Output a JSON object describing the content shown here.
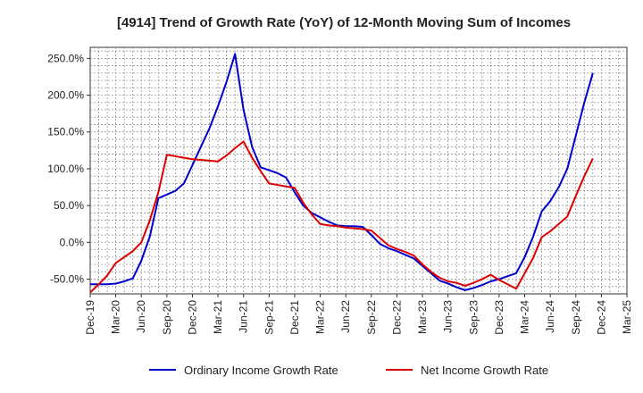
{
  "chart_data": {
    "type": "line",
    "title": "[4914]  Trend of Growth Rate (YoY) of 12-Month Moving Sum of Incomes",
    "xlabel": "",
    "ylabel": "",
    "ylim": [
      -70,
      265
    ],
    "grid": true,
    "legend": "bottom",
    "y_ticks": [
      -50,
      0,
      50,
      100,
      150,
      200,
      250
    ],
    "y_tick_labels": [
      "-50.0%",
      "0.0%",
      "50.0%",
      "100.0%",
      "150.0%",
      "200.0%",
      "250.0%"
    ],
    "x_tick_labels": [
      "Dec-19",
      "Mar-20",
      "Jun-20",
      "Sep-20",
      "Dec-20",
      "Mar-21",
      "Jun-21",
      "Sep-21",
      "Dec-21",
      "Mar-22",
      "Jun-22",
      "Sep-22",
      "Dec-22",
      "Mar-23",
      "Jun-23",
      "Sep-23",
      "Dec-23",
      "Mar-24",
      "Jun-24",
      "Sep-24",
      "Dec-24",
      "Mar-25"
    ],
    "series": [
      {
        "name": "Ordinary Income Growth Rate",
        "color": "#0000cc",
        "values": [
          -57,
          -57,
          -57,
          -56,
          -53,
          -49,
          -25,
          8,
          60,
          65,
          70,
          80,
          105,
          130,
          155,
          185,
          218,
          256,
          180,
          130,
          102,
          98,
          94,
          88,
          68,
          50,
          40,
          34,
          28,
          23,
          22,
          22,
          21,
          10,
          -2,
          -8,
          -12,
          -17,
          -22,
          -32,
          -42,
          -52,
          -56,
          -61,
          -65,
          -62,
          -58,
          -53,
          -50,
          -46,
          -42,
          -20,
          8,
          42,
          56,
          75,
          100,
          145,
          190,
          230
        ]
      },
      {
        "name": "Net Income Growth Rate",
        "color": "#dd0000",
        "values": [
          -68,
          -57,
          -45,
          -28,
          -20,
          -12,
          0,
          30,
          68,
          119,
          117,
          115,
          113,
          112,
          111,
          110,
          118,
          128,
          137,
          115,
          97,
          80,
          78,
          76,
          74,
          54,
          38,
          25,
          23,
          22,
          20,
          19,
          18,
          16,
          6,
          -4,
          -9,
          -13,
          -18,
          -30,
          -40,
          -48,
          -53,
          -55,
          -59,
          -55,
          -50,
          -44,
          -51,
          -57,
          -63,
          -42,
          -21,
          7,
          15,
          25,
          35,
          63,
          90,
          114
        ]
      }
    ]
  }
}
